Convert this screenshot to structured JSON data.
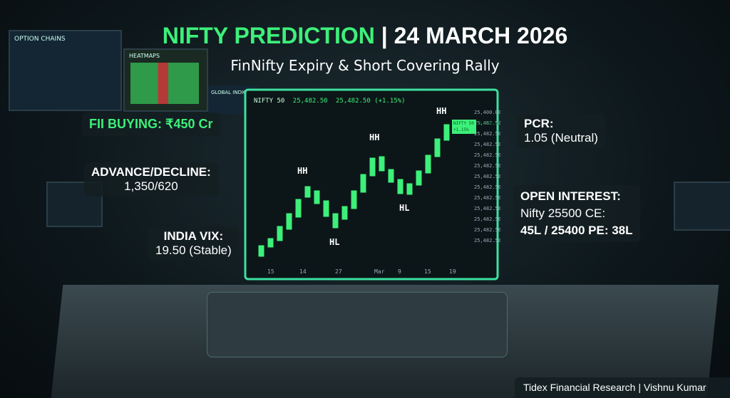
{
  "header": {
    "title_main": "NIFTY PREDICTION",
    "title_date": "| 24 MARCH 2026",
    "subtitle": "FinNifty Expiry & Short Covering Rally"
  },
  "callouts": {
    "fii": "FII BUYING: ₹450 Cr",
    "advance_decline": {
      "label": "ADVANCE/DECLINE:",
      "value": "1,350/620"
    },
    "vix": {
      "label": "INDIA VIX:",
      "value": "19.50 (Stable)"
    },
    "pcr": {
      "label": "PCR:",
      "value": "1.05 (Neutral)"
    },
    "open_interest": {
      "label": "OPEN INTEREST:",
      "line1": "Nifty 25500 CE:",
      "line2": "45L / 25400 PE: 38L"
    }
  },
  "monitor": {
    "header": [
      "NIFTY 50",
      "25,482.50",
      "25,482.50 (+1.15%)"
    ],
    "badge": [
      "NIFTY 50",
      "25,482.50",
      "+1.15%"
    ],
    "y_labels": [
      "25,400.00",
      "25,482.50",
      "25,482.50",
      "25,482.50",
      "25,482.50",
      "25,482.50",
      "25,482.50",
      "25,482.50",
      "25,482.50",
      "25,482.50",
      "25,482.50",
      "25,482.50",
      "25,482.50"
    ],
    "x_labels": [
      "15",
      "14",
      "27",
      "Mar",
      "9",
      "15",
      "19"
    ],
    "pattern_labels": [
      "HH",
      "HL",
      "HH",
      "HL",
      "HH"
    ]
  },
  "screens": {
    "option_chains": "OPTION CHAINS",
    "heatmaps": "HEATMAPS",
    "global_indices": "GLOBAL INDICES"
  },
  "footer": "Tidex Financial Research | Vishnu Kumar"
}
